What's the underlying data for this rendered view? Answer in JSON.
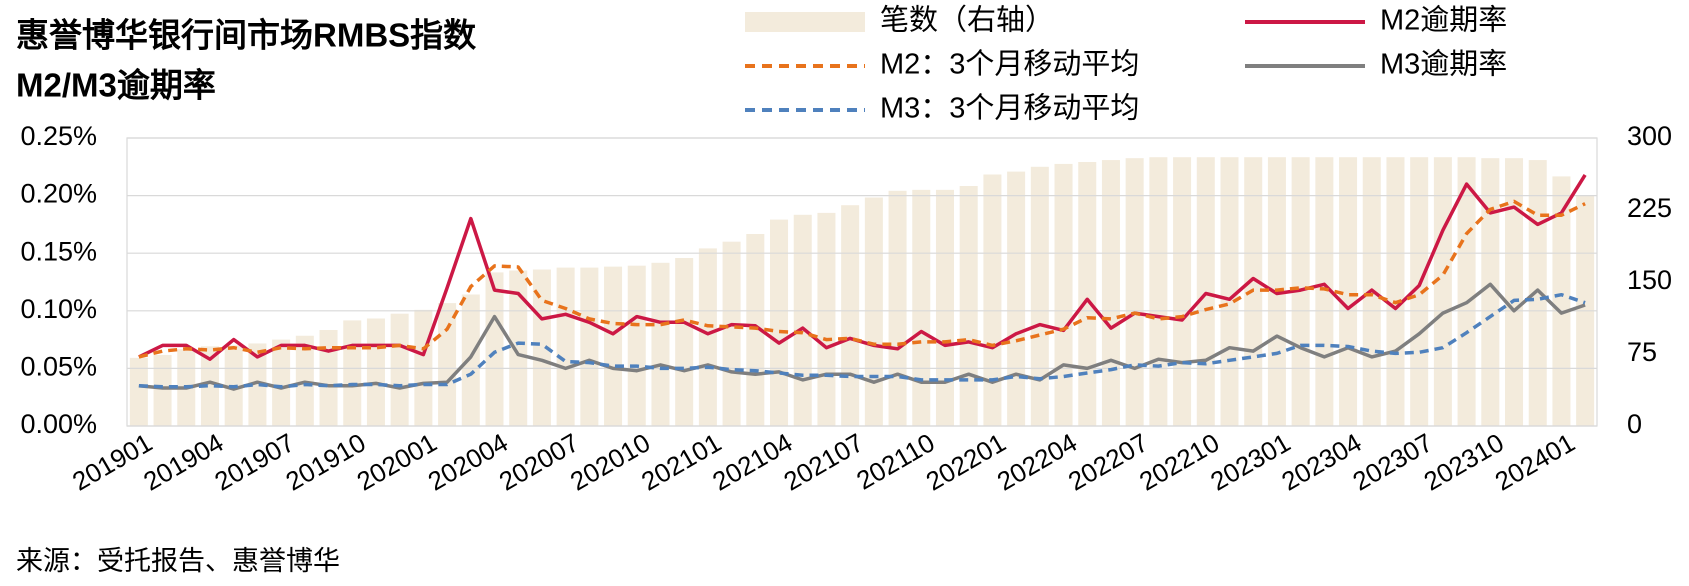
{
  "chart_data": {
    "type": "combo",
    "title": "惠誉博华银行间市场RMBS指数",
    "subtitle": "M2/M3逾期率",
    "source": "来源：受托报告、惠誉博华",
    "categories": [
      "201901",
      null,
      null,
      "201904",
      null,
      null,
      "201907",
      null,
      null,
      "201910",
      null,
      null,
      "202001",
      null,
      null,
      "202004",
      null,
      null,
      "202007",
      null,
      null,
      "202010",
      null,
      null,
      "202101",
      null,
      null,
      "202104",
      null,
      null,
      "202107",
      null,
      null,
      "202110",
      null,
      null,
      "202201",
      null,
      null,
      "202204",
      null,
      null,
      "202207",
      null,
      null,
      "202210",
      null,
      null,
      "202301",
      null,
      null,
      "202304",
      null,
      null,
      "202307",
      null,
      null,
      "202310",
      null,
      null,
      "202401",
      null
    ],
    "ylim": [
      0,
      0.25
    ],
    "yticks": [
      {
        "value": 0,
        "label": "0.00%"
      },
      {
        "value": 0.05,
        "label": "0.05%"
      },
      {
        "value": 0.1,
        "label": "0.10%"
      },
      {
        "value": 0.15,
        "label": "0.15%"
      },
      {
        "value": 0.2,
        "label": "0.20%"
      },
      {
        "value": 0.25,
        "label": "0.25%"
      }
    ],
    "y2lim": [
      0,
      300
    ],
    "y2ticks": [
      0,
      75,
      150,
      225,
      300
    ],
    "grid": true,
    "series": [
      {
        "name": "笔数（右轴）",
        "mark": "bar",
        "axis": "y2",
        "color": "#f3ebdc",
        "values": [
          71,
          74,
          80,
          83,
          84,
          86,
          90,
          94,
          100,
          110,
          112,
          117,
          121,
          128,
          137,
          160,
          162,
          163,
          165,
          165,
          166,
          167,
          170,
          175,
          185,
          192,
          200,
          215,
          220,
          222,
          230,
          238,
          245,
          246,
          246,
          250,
          262,
          265,
          270,
          273,
          275,
          277,
          279,
          280,
          280,
          280,
          280,
          280,
          280,
          280,
          280,
          280,
          280,
          280,
          280,
          280,
          280,
          279,
          279,
          277,
          260,
          240
        ]
      },
      {
        "name": "M2逾期率",
        "mark": "line",
        "color": "#cc1845",
        "values": [
          0.06,
          0.07,
          0.07,
          0.058,
          0.075,
          0.06,
          0.07,
          0.07,
          0.065,
          0.07,
          0.07,
          0.07,
          0.062,
          0.12,
          0.18,
          0.118,
          0.115,
          0.093,
          0.097,
          0.09,
          0.08,
          0.095,
          0.09,
          0.09,
          0.08,
          0.088,
          0.087,
          0.072,
          0.085,
          0.068,
          0.076,
          0.07,
          0.067,
          0.082,
          0.07,
          0.073,
          0.068,
          0.08,
          0.088,
          0.083,
          0.11,
          0.085,
          0.098,
          0.095,
          0.092,
          0.115,
          0.11,
          0.128,
          0.115,
          0.118,
          0.123,
          0.102,
          0.118,
          0.102,
          0.122,
          0.17,
          0.21,
          0.185,
          0.19,
          0.175,
          0.185,
          0.218
        ]
      },
      {
        "name": "M2：3个月移动平均",
        "mark": "line",
        "dashed": true,
        "color": "#e8731c",
        "values": [
          0.06,
          0.065,
          0.067,
          0.066,
          0.068,
          0.064,
          0.068,
          0.067,
          0.068,
          0.068,
          0.068,
          0.07,
          0.067,
          0.084,
          0.121,
          0.139,
          0.138,
          0.109,
          0.102,
          0.093,
          0.089,
          0.088,
          0.088,
          0.092,
          0.087,
          0.086,
          0.085,
          0.082,
          0.081,
          0.075,
          0.076,
          0.071,
          0.071,
          0.073,
          0.073,
          0.075,
          0.07,
          0.074,
          0.079,
          0.084,
          0.094,
          0.093,
          0.098,
          0.093,
          0.095,
          0.101,
          0.106,
          0.118,
          0.118,
          0.12,
          0.119,
          0.114,
          0.114,
          0.107,
          0.114,
          0.131,
          0.167,
          0.188,
          0.195,
          0.183,
          0.183,
          0.193
        ]
      },
      {
        "name": "M3逾期率",
        "mark": "line",
        "color": "#7f7f7f",
        "values": [
          0.035,
          0.033,
          0.033,
          0.038,
          0.032,
          0.038,
          0.033,
          0.038,
          0.035,
          0.035,
          0.037,
          0.033,
          0.037,
          0.038,
          0.06,
          0.095,
          0.062,
          0.057,
          0.05,
          0.057,
          0.05,
          0.048,
          0.053,
          0.048,
          0.053,
          0.047,
          0.045,
          0.047,
          0.04,
          0.045,
          0.045,
          0.038,
          0.045,
          0.038,
          0.038,
          0.045,
          0.038,
          0.045,
          0.04,
          0.053,
          0.05,
          0.057,
          0.05,
          0.058,
          0.055,
          0.057,
          0.068,
          0.065,
          0.078,
          0.068,
          0.06,
          0.068,
          0.06,
          0.065,
          0.08,
          0.098,
          0.107,
          0.123,
          0.1,
          0.118,
          0.098,
          0.105
        ]
      },
      {
        "name": "M3：3个月移动平均",
        "mark": "line",
        "dashed": true,
        "color": "#4f81bd",
        "values": [
          0.035,
          0.034,
          0.034,
          0.035,
          0.034,
          0.036,
          0.034,
          0.036,
          0.035,
          0.036,
          0.036,
          0.035,
          0.036,
          0.036,
          0.045,
          0.064,
          0.072,
          0.071,
          0.056,
          0.055,
          0.052,
          0.052,
          0.05,
          0.05,
          0.051,
          0.049,
          0.048,
          0.046,
          0.044,
          0.044,
          0.043,
          0.043,
          0.043,
          0.04,
          0.04,
          0.04,
          0.04,
          0.043,
          0.041,
          0.043,
          0.046,
          0.049,
          0.053,
          0.052,
          0.055,
          0.054,
          0.057,
          0.06,
          0.063,
          0.07,
          0.07,
          0.069,
          0.065,
          0.063,
          0.064,
          0.068,
          0.081,
          0.095,
          0.109,
          0.11,
          0.114,
          0.107
        ]
      }
    ]
  }
}
